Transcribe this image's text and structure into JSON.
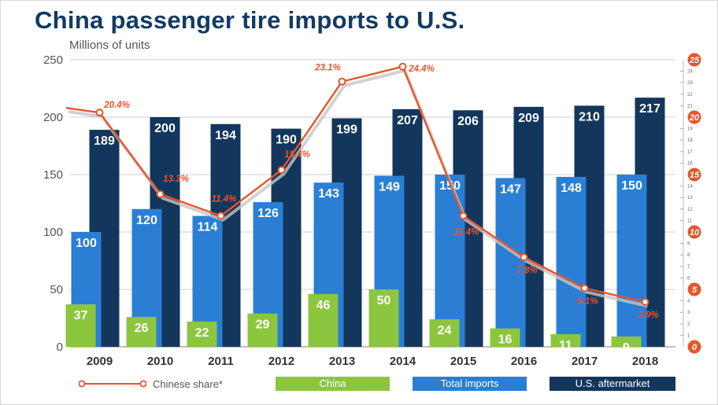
{
  "chart_data": {
    "type": "bar",
    "title": "China passenger tire imports to U.S.",
    "ylabel": "Millions of units",
    "categories": [
      "2009",
      "2010",
      "2011",
      "2012",
      "2013",
      "2014",
      "2015",
      "2016",
      "2017",
      "2018"
    ],
    "ylim": [
      0,
      250
    ],
    "yticks": [
      "0",
      "50",
      "100",
      "150",
      "200",
      "250"
    ],
    "y2lim": [
      0,
      25
    ],
    "y2ticks_major": [
      "0",
      "5",
      "10",
      "15",
      "20",
      "25"
    ],
    "y2ticks_minor": [
      "1",
      "2",
      "3",
      "4",
      "6",
      "7",
      "8",
      "9",
      "11",
      "12",
      "13",
      "14",
      "16",
      "17",
      "18",
      "19",
      "21",
      "22",
      "23",
      "24"
    ],
    "series": [
      {
        "name": "China",
        "type": "bar",
        "color": "#8cc63f",
        "values": [
          37,
          26,
          22,
          29,
          46,
          50,
          24,
          16,
          11,
          9
        ]
      },
      {
        "name": "Total imports",
        "type": "bar",
        "color": "#2a7fd4",
        "values": [
          100,
          120,
          114,
          126,
          143,
          149,
          150,
          147,
          148,
          150
        ]
      },
      {
        "name": "U.S. aftermarket",
        "type": "bar",
        "color": "#13365c",
        "values": [
          189,
          200,
          194,
          190,
          199,
          207,
          206,
          209,
          210,
          217
        ]
      },
      {
        "name": "Chinese share*",
        "type": "line",
        "axis": "right",
        "color": "#e8552a",
        "values": [
          20.4,
          13.3,
          11.4,
          15.4,
          23.1,
          24.4,
          11.4,
          7.8,
          5.1,
          3.9
        ],
        "labels": [
          "20.4%",
          "13.3%",
          "11.4%",
          "15.4%",
          "23.1%",
          "24.4%",
          "11.4%",
          "7.8%",
          "5.1%",
          "3.9%"
        ]
      }
    ],
    "legend_position": "bottom",
    "grid": true
  }
}
